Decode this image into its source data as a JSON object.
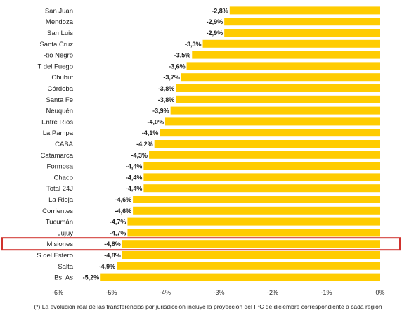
{
  "chart_data": {
    "type": "bar",
    "orientation": "horizontal",
    "categories": [
      "San Juan",
      "Mendoza",
      "San Luis",
      "Santa Cruz",
      "Rio Negro",
      "T del Fuego",
      "Chubut",
      "Córdoba",
      "Santa Fe",
      "Neuquén",
      "Entre Ríos",
      "La Pampa",
      "CABA",
      "Catamarca",
      "Formosa",
      "Chaco",
      "Total 24J",
      "La Rioja",
      "Corrientes",
      "Tucumán",
      "Jujuy",
      "Misiones",
      "S del Estero",
      "Salta",
      "Bs. As"
    ],
    "values": [
      -2.8,
      -2.9,
      -2.9,
      -3.3,
      -3.5,
      -3.6,
      -3.7,
      -3.8,
      -3.8,
      -3.9,
      -4.0,
      -4.1,
      -4.2,
      -4.3,
      -4.4,
      -4.4,
      -4.4,
      -4.6,
      -4.6,
      -4.7,
      -4.7,
      -4.8,
      -4.8,
      -4.9,
      -5.2
    ],
    "value_labels": [
      "-2,8%",
      "-2,9%",
      "-2,9%",
      "-3,3%",
      "-3,5%",
      "-3,6%",
      "-3,7%",
      "-3,8%",
      "-3,8%",
      "-3,9%",
      "-4,0%",
      "-4,1%",
      "-4,2%",
      "-4,3%",
      "-4,4%",
      "-4,4%",
      "-4,4%",
      "-4,6%",
      "-4,6%",
      "-4,7%",
      "-4,7%",
      "-4,8%",
      "-4,8%",
      "-4,9%",
      "-5,2%"
    ],
    "xlim": [
      -6,
      0
    ],
    "xticks": [
      "-6%",
      "-5%",
      "-4%",
      "-3%",
      "-2%",
      "-1%",
      "0%"
    ],
    "highlighted_category": "Misiones",
    "grid": false,
    "colors": {
      "bar": "#FFCC00",
      "highlight_box": "#D0312D",
      "text": "#222222"
    }
  },
  "footnote": "(*) La evolución real de las transferencias por jurisdicción incluye la proyección del IPC de diciembre correspondiente a cada región"
}
